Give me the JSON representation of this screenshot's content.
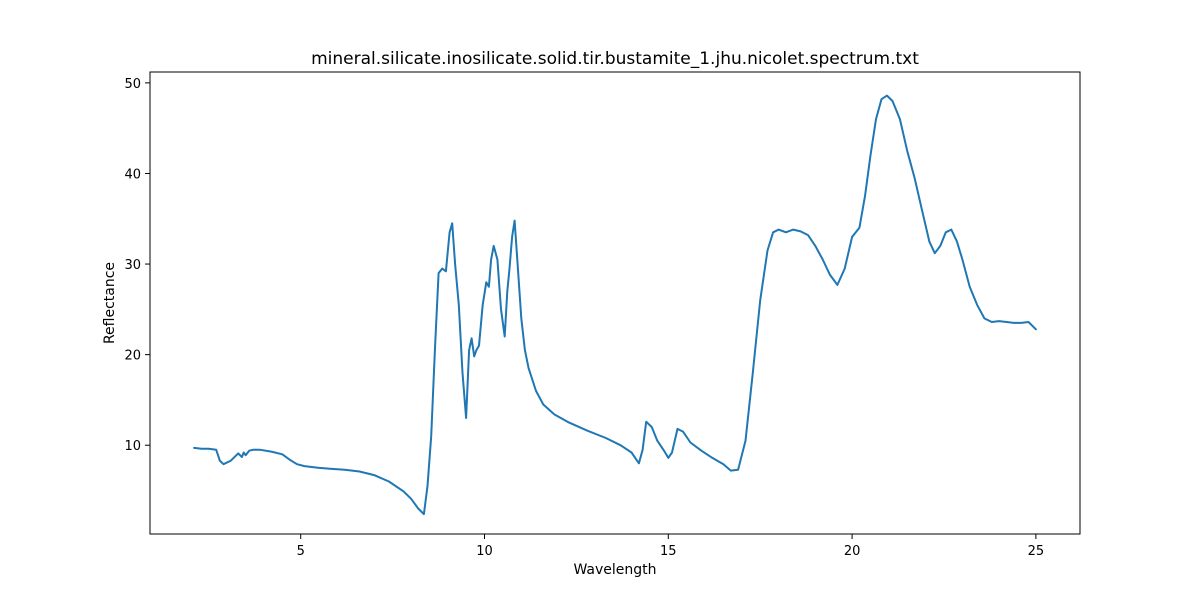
{
  "chart_data": {
    "type": "line",
    "title": "mineral.silicate.inosilicate.solid.tir.bustamite_1.jhu.nicolet.spectrum.txt",
    "xlabel": "Wavelength",
    "ylabel": "Reflectance",
    "xlim": [
      0.9,
      26.2
    ],
    "ylim": [
      0.2,
      51.2
    ],
    "xticks": [
      5,
      10,
      15,
      20,
      25
    ],
    "yticks": [
      10,
      20,
      30,
      40,
      50
    ],
    "grid": false,
    "series": [
      {
        "color": "#1f77b4",
        "x": [
          2.1,
          2.3,
          2.5,
          2.7,
          2.8,
          2.9,
          3.1,
          3.3,
          3.4,
          3.45,
          3.5,
          3.6,
          3.7,
          3.9,
          4.2,
          4.5,
          4.7,
          4.9,
          5.1,
          5.3,
          5.5,
          5.8,
          6.2,
          6.6,
          7.0,
          7.4,
          7.8,
          8.0,
          8.2,
          8.35,
          8.45,
          8.55,
          8.65,
          8.75,
          8.85,
          8.95,
          9.05,
          9.12,
          9.2,
          9.3,
          9.4,
          9.5,
          9.58,
          9.65,
          9.72,
          9.78,
          9.85,
          9.95,
          10.05,
          10.12,
          10.18,
          10.25,
          10.35,
          10.45,
          10.55,
          10.62,
          10.68,
          10.75,
          10.82,
          10.9,
          11.0,
          11.1,
          11.2,
          11.4,
          11.6,
          11.9,
          12.3,
          12.8,
          13.3,
          13.7,
          14.0,
          14.2,
          14.3,
          14.4,
          14.55,
          14.7,
          14.9,
          15.0,
          15.1,
          15.25,
          15.4,
          15.6,
          15.9,
          16.2,
          16.5,
          16.7,
          16.9,
          17.1,
          17.3,
          17.5,
          17.7,
          17.85,
          18.0,
          18.2,
          18.4,
          18.6,
          18.8,
          19.0,
          19.2,
          19.4,
          19.6,
          19.8,
          20.0,
          20.2,
          20.35,
          20.5,
          20.65,
          20.8,
          20.95,
          21.1,
          21.3,
          21.5,
          21.7,
          21.9,
          22.1,
          22.25,
          22.4,
          22.55,
          22.7,
          22.85,
          23.0,
          23.2,
          23.4,
          23.6,
          23.8,
          24.0,
          24.2,
          24.4,
          24.6,
          24.8,
          25.0
        ],
        "y": [
          9.7,
          9.6,
          9.6,
          9.5,
          8.3,
          7.9,
          8.3,
          9.1,
          8.7,
          9.2,
          8.9,
          9.4,
          9.5,
          9.5,
          9.3,
          9.0,
          8.4,
          7.9,
          7.7,
          7.6,
          7.5,
          7.4,
          7.3,
          7.1,
          6.7,
          6.0,
          4.9,
          4.1,
          3.0,
          2.4,
          5.5,
          11.0,
          20.5,
          29.0,
          29.5,
          29.2,
          33.5,
          34.5,
          30.0,
          25.5,
          18.0,
          13.0,
          20.5,
          21.8,
          19.8,
          20.5,
          21.0,
          25.5,
          28.0,
          27.5,
          30.5,
          32.0,
          30.5,
          25.0,
          22.0,
          27.0,
          29.5,
          33.0,
          34.8,
          30.0,
          24.0,
          20.5,
          18.5,
          16.0,
          14.5,
          13.4,
          12.5,
          11.6,
          10.8,
          10.0,
          9.2,
          8.0,
          9.5,
          12.6,
          12.0,
          10.5,
          9.3,
          8.6,
          9.2,
          11.8,
          11.5,
          10.3,
          9.4,
          8.6,
          7.9,
          7.2,
          7.3,
          10.5,
          18.0,
          26.0,
          31.5,
          33.5,
          33.8,
          33.5,
          33.8,
          33.6,
          33.2,
          32.0,
          30.5,
          28.8,
          27.7,
          29.5,
          33.0,
          34.0,
          37.5,
          42.0,
          46.0,
          48.2,
          48.6,
          48.0,
          46.0,
          42.5,
          39.5,
          36.0,
          32.5,
          31.2,
          32.0,
          33.5,
          33.8,
          32.5,
          30.5,
          27.5,
          25.5,
          24.0,
          23.6,
          23.7,
          23.6,
          23.5,
          23.5,
          23.6,
          22.8
        ]
      }
    ]
  }
}
